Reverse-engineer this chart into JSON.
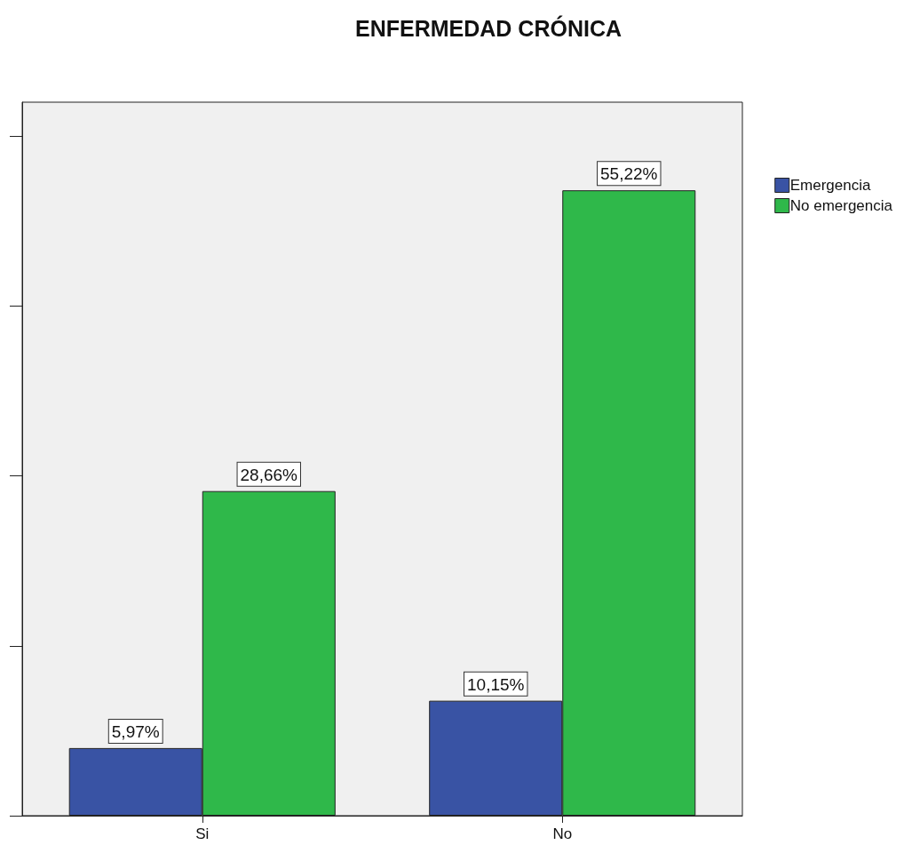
{
  "chart_data": {
    "type": "bar",
    "title": "ENFERMEDAD CRÓNICA",
    "categories": [
      "Si",
      "No"
    ],
    "series": [
      {
        "name": "Emergencia",
        "color": "#3953a4",
        "values": [
          5.97,
          10.15
        ],
        "value_labels": [
          "5,97%",
          "10,15%"
        ]
      },
      {
        "name": "No emergencia",
        "color": "#2fb84a",
        "values": [
          28.66,
          55.22
        ],
        "value_labels": [
          "28,66%",
          "55,22%"
        ]
      }
    ],
    "ylim": [
      0,
      63
    ],
    "yticks": [
      {
        "value": 0,
        "label": null
      },
      {
        "value": 15,
        "label": null
      },
      {
        "value": 30,
        "label": null
      },
      {
        "value": 45,
        "label": null
      },
      {
        "value": 60,
        "label": null
      }
    ],
    "tick_labels": "x",
    "grid": false,
    "legend": "top right"
  }
}
